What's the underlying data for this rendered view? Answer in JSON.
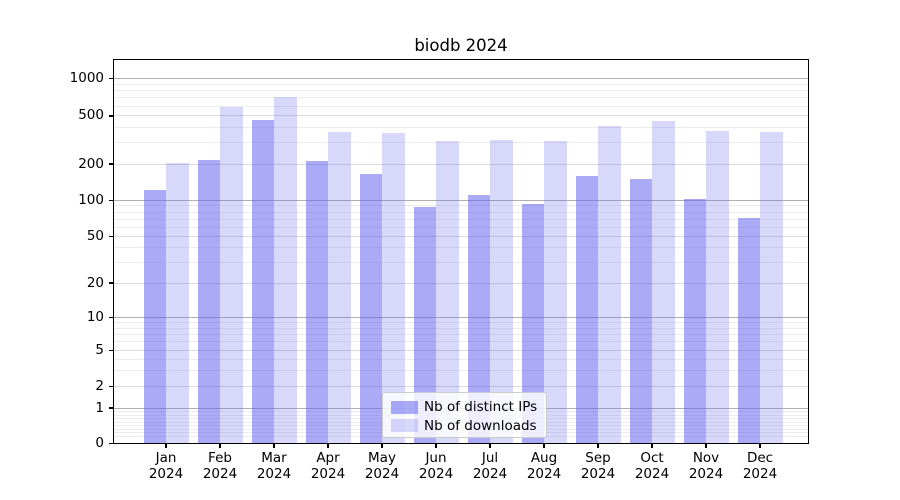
{
  "title": "biodb 2024",
  "chart_data": {
    "type": "bar",
    "title": "biodb 2024",
    "categories": [
      "Jan",
      "Feb",
      "Mar",
      "Apr",
      "May",
      "Jun",
      "Jul",
      "Aug",
      "Sep",
      "Oct",
      "Nov",
      "Dec"
    ],
    "category_year": "2024",
    "series": [
      {
        "name": "Nb of distinct IPs",
        "color": "rgba(100,100,240,0.55)",
        "values": [
          122,
          218,
          460,
          210,
          165,
          89,
          110,
          93,
          158,
          150,
          103,
          72
        ]
      },
      {
        "name": "Nb of downloads",
        "color": "rgba(100,100,240,0.25)",
        "values": [
          205,
          590,
          705,
          365,
          360,
          310,
          315,
          310,
          410,
          455,
          375,
          365
        ]
      }
    ],
    "yscale": "symlog",
    "yticks": [
      0,
      1,
      2,
      5,
      10,
      20,
      50,
      100,
      200,
      500,
      1000
    ],
    "ylim": [
      0,
      1400
    ],
    "grid": true,
    "legend_position": "lower center"
  },
  "colors": {
    "bar_base": "#6464f0",
    "grid_major": "#b0b0b0",
    "grid_mid": "#dadada",
    "grid_minor": "#ececec",
    "spine": "#000000",
    "legend_border": "#cccccc",
    "background": "#ffffff",
    "text": "#000000"
  }
}
